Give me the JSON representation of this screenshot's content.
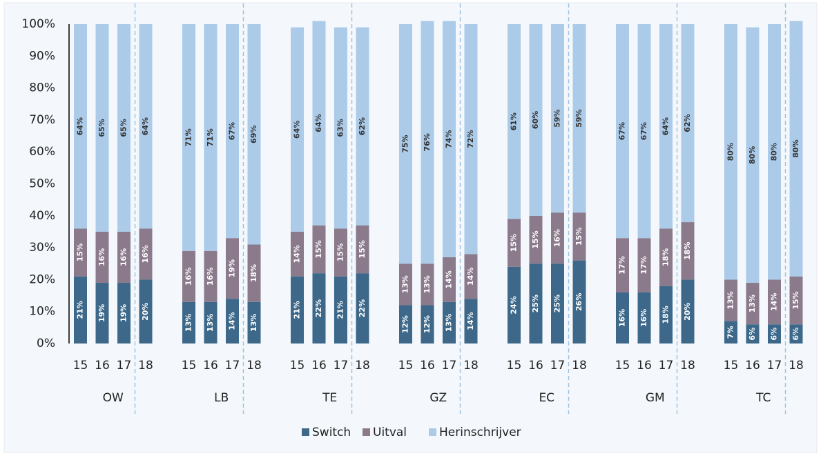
{
  "chart_data": {
    "type": "stacked_bar",
    "categories": [
      "15",
      "16",
      "17",
      "18",
      "15",
      "16",
      "17",
      "18",
      "15",
      "16",
      "17",
      "18",
      "15",
      "16",
      "17",
      "18",
      "15",
      "16",
      "17",
      "18",
      "15",
      "16",
      "17",
      "18",
      "15",
      "16",
      "17",
      "18"
    ],
    "groups": [
      "OW",
      "LB",
      "TE",
      "GZ",
      "EC",
      "GM",
      "TC"
    ],
    "ylim": [
      0,
      100
    ],
    "yticks": [
      {
        "value": 0,
        "label": "0%"
      },
      {
        "value": 10,
        "label": "10%"
      },
      {
        "value": 20,
        "label": "20%"
      },
      {
        "value": 30,
        "label": "30%"
      },
      {
        "value": 40,
        "label": "40%"
      },
      {
        "value": 50,
        "label": "50%"
      },
      {
        "value": 60,
        "label": "60%"
      },
      {
        "value": 70,
        "label": "70%"
      },
      {
        "value": 80,
        "label": "80%"
      },
      {
        "value": 90,
        "label": "90%"
      },
      {
        "value": 100,
        "label": "100%"
      }
    ],
    "series": [
      {
        "name": "Switch",
        "color": "#3d6889",
        "values": [
          21,
          19,
          19,
          20,
          13,
          13,
          14,
          13,
          21,
          22,
          21,
          22,
          12,
          12,
          13,
          14,
          24,
          25,
          25,
          26,
          16,
          16,
          18,
          20,
          7,
          6,
          6,
          6
        ],
        "value_labels": [
          "21%",
          "19%",
          "19%",
          "20%",
          "13%",
          "13%",
          "14%",
          "13%",
          "21%",
          "22%",
          "21%",
          "22%",
          "12%",
          "12%",
          "13%",
          "14%",
          "24%",
          "25%",
          "25%",
          "26%",
          "16%",
          "16%",
          "18%",
          "20%",
          "7%",
          "6%",
          "6%",
          "6%"
        ]
      },
      {
        "name": "Uitval",
        "color": "#8a7a8b",
        "values": [
          15,
          16,
          16,
          16,
          16,
          16,
          19,
          18,
          14,
          15,
          15,
          15,
          13,
          13,
          14,
          14,
          15,
          15,
          16,
          15,
          17,
          17,
          18,
          18,
          13,
          13,
          14,
          15
        ],
        "value_labels": [
          "15%",
          "16%",
          "16%",
          "16%",
          "16%",
          "16%",
          "19%",
          "18%",
          "14%",
          "15%",
          "15%",
          "15%",
          "13%",
          "13%",
          "14%",
          "14%",
          "15%",
          "15%",
          "16%",
          "15%",
          "17%",
          "17%",
          "18%",
          "18%",
          "13%",
          "13%",
          "14%",
          "15%"
        ]
      },
      {
        "name": "Herinschrijver",
        "color": "#abcbe9",
        "values": [
          64,
          65,
          65,
          64,
          71,
          71,
          67,
          69,
          64,
          64,
          63,
          62,
          75,
          76,
          74,
          72,
          61,
          60,
          59,
          59,
          67,
          67,
          64,
          62,
          80,
          80,
          80,
          80
        ],
        "value_labels": [
          "64%",
          "65%",
          "65%",
          "64%",
          "71%",
          "71%",
          "67%",
          "69%",
          "64%",
          "64%",
          "63%",
          "62%",
          "75%",
          "76%",
          "74%",
          "72%",
          "61%",
          "60%",
          "59%",
          "59%",
          "67%",
          "67%",
          "64%",
          "62%",
          "80%",
          "80%",
          "80%",
          "80%"
        ]
      }
    ]
  }
}
